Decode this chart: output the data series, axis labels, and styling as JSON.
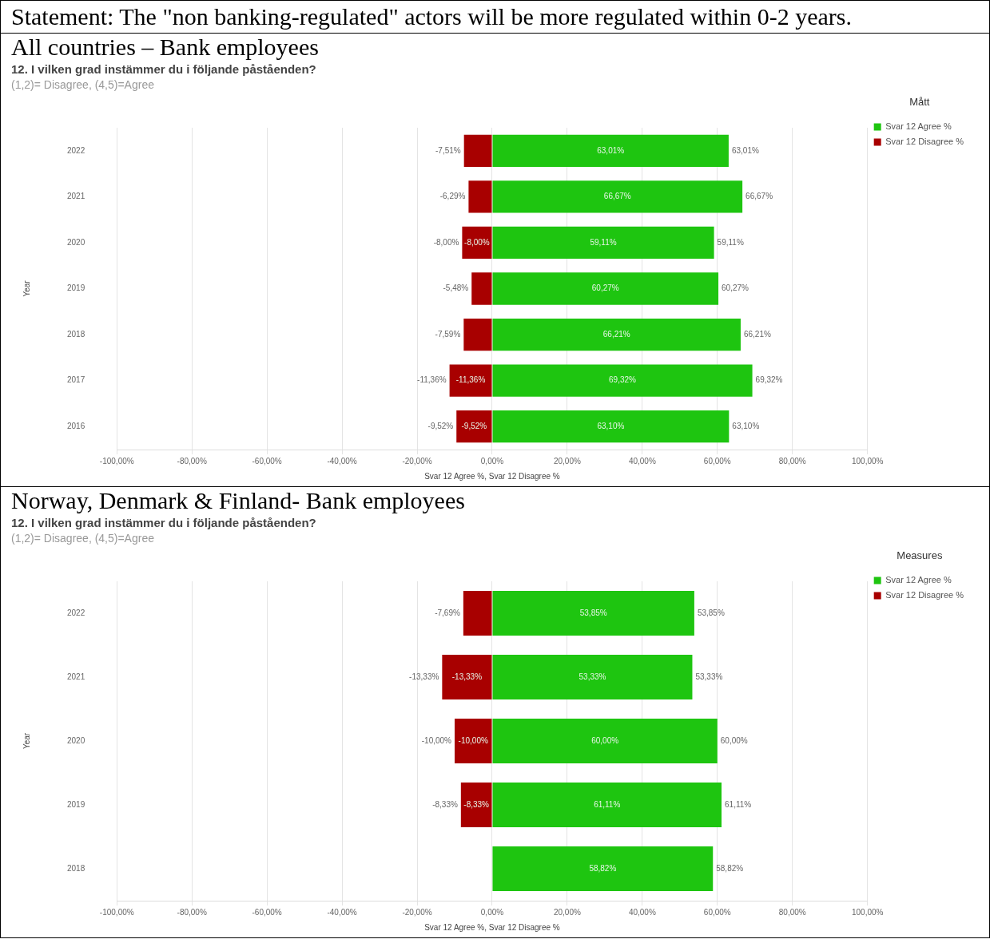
{
  "chart_data": [
    {
      "type": "other",
      "title": "Statement: The \"non banking-regulated\" actors will be more regulated within 0-2 years."
    },
    {
      "type": "bar",
      "orientation": "horizontal",
      "stacked": true,
      "title": "All countries – Bank employees",
      "subtitle": "12. I vilken grad instämmer du i följande påståenden?",
      "annotations": [
        "(1,2)= Disagree, (4,5)=Agree"
      ],
      "xlabel": "Svar 12 Agree %, Svar 12 Disagree %",
      "ylabel": "Year",
      "legend_title": "Mått",
      "legend": "right",
      "grid": "x",
      "categories": [
        "2022",
        "2021",
        "2020",
        "2019",
        "2018",
        "2017",
        "2016"
      ],
      "xlim": [
        -100,
        100
      ],
      "xticks": [
        {
          "value": -100,
          "label": "-100,00%"
        },
        {
          "value": -80,
          "label": "-80,00%"
        },
        {
          "value": -60,
          "label": "-60,00%"
        },
        {
          "value": -40,
          "label": "-40,00%"
        },
        {
          "value": -20,
          "label": "-20,00%"
        },
        {
          "value": 0,
          "label": "0,00%"
        },
        {
          "value": 20,
          "label": "20,00%"
        },
        {
          "value": 40,
          "label": "40,00%"
        },
        {
          "value": 60,
          "label": "60,00%"
        },
        {
          "value": 80,
          "label": "80,00%"
        },
        {
          "value": 100,
          "label": "100,00%"
        }
      ],
      "series": [
        {
          "name": "Svar 12 Agree %",
          "color": "#1ec510",
          "values": [
            63.01,
            66.67,
            59.11,
            60.27,
            66.21,
            69.32,
            63.1
          ],
          "value_labels": [
            "63,01%",
            "66,67%",
            "59,11%",
            "60,27%",
            "66,21%",
            "69,32%",
            "63,10%"
          ]
        },
        {
          "name": "Svar 12 Disagree %",
          "color": "#a80000",
          "values": [
            -7.51,
            -6.29,
            -8.0,
            -5.48,
            -7.59,
            -11.36,
            -9.52
          ],
          "value_labels": [
            "-7,51%",
            "-6,29%",
            "-8,00%",
            "-5,48%",
            "-7,59%",
            "-11,36%",
            "-9,52%"
          ]
        }
      ]
    },
    {
      "type": "bar",
      "orientation": "horizontal",
      "stacked": true,
      "title": "Norway, Denmark & Finland- Bank employees",
      "subtitle": "12. I vilken grad instämmer du i följande påståenden?",
      "annotations": [
        "(1,2)= Disagree, (4,5)=Agree"
      ],
      "xlabel": "Svar 12 Agree %, Svar 12 Disagree %",
      "ylabel": "Year",
      "legend_title": "Measures",
      "legend": "right",
      "grid": "x",
      "categories": [
        "2022",
        "2021",
        "2020",
        "2019",
        "2018"
      ],
      "xlim": [
        -100,
        100
      ],
      "xticks": [
        {
          "value": -100,
          "label": "-100,00%"
        },
        {
          "value": -80,
          "label": "-80,00%"
        },
        {
          "value": -60,
          "label": "-60,00%"
        },
        {
          "value": -40,
          "label": "-40,00%"
        },
        {
          "value": -20,
          "label": "-20,00%"
        },
        {
          "value": 0,
          "label": "0,00%"
        },
        {
          "value": 20,
          "label": "20,00%"
        },
        {
          "value": 40,
          "label": "40,00%"
        },
        {
          "value": 60,
          "label": "60,00%"
        },
        {
          "value": 80,
          "label": "80,00%"
        },
        {
          "value": 100,
          "label": "100,00%"
        }
      ],
      "series": [
        {
          "name": "Svar 12 Agree %",
          "color": "#1ec510",
          "values": [
            53.85,
            53.33,
            60.0,
            61.11,
            58.82
          ],
          "value_labels": [
            "53,85%",
            "53,33%",
            "60,00%",
            "61,11%",
            "58,82%"
          ]
        },
        {
          "name": "Svar 12 Disagree %",
          "color": "#a80000",
          "values": [
            -7.69,
            -13.33,
            -10.0,
            -8.33,
            null
          ],
          "value_labels": [
            "-7,69%",
            "-13,33%",
            "-10,00%",
            "-8,33%",
            null
          ]
        }
      ]
    }
  ]
}
